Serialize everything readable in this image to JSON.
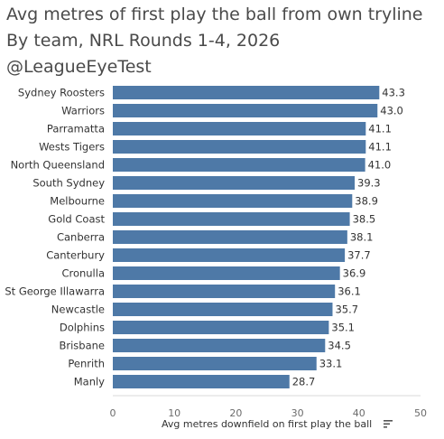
{
  "title_lines": [
    "Avg metres of first play the ball from own tryline",
    "By team, NRL Rounds 1-4, 2026",
    "@LeagueEyeTest"
  ],
  "chart_data": {
    "type": "bar",
    "orientation": "horizontal",
    "categories": [
      "Sydney Roosters",
      "Warriors",
      "Parramatta",
      "Wests Tigers",
      "North Queensland",
      "South Sydney",
      "Melbourne",
      "Gold Coast",
      "Canberra",
      "Canterbury",
      "Cronulla",
      "St George Illawarra",
      "Newcastle",
      "Dolphins",
      "Brisbane",
      "Penrith",
      "Manly"
    ],
    "values": [
      43.3,
      43.0,
      41.1,
      41.1,
      41.0,
      39.3,
      38.9,
      38.5,
      38.1,
      37.7,
      36.9,
      36.1,
      35.7,
      35.1,
      34.5,
      33.1,
      28.7
    ],
    "value_labels": [
      "43.3",
      "43.0",
      "41.1",
      "41.1",
      "41.0",
      "39.3",
      "38.9",
      "38.5",
      "38.1",
      "37.7",
      "36.9",
      "36.1",
      "35.7",
      "35.1",
      "34.5",
      "33.1",
      "28.7"
    ],
    "xlabel": "Avg metres downfield on first play the ball",
    "xlim": [
      0,
      50
    ],
    "xticks": [
      "0",
      "10",
      "20",
      "30",
      "40",
      "50"
    ],
    "bar_color": "#4e79a7",
    "grid": false,
    "sort_icon": "sort-descending-icon"
  }
}
